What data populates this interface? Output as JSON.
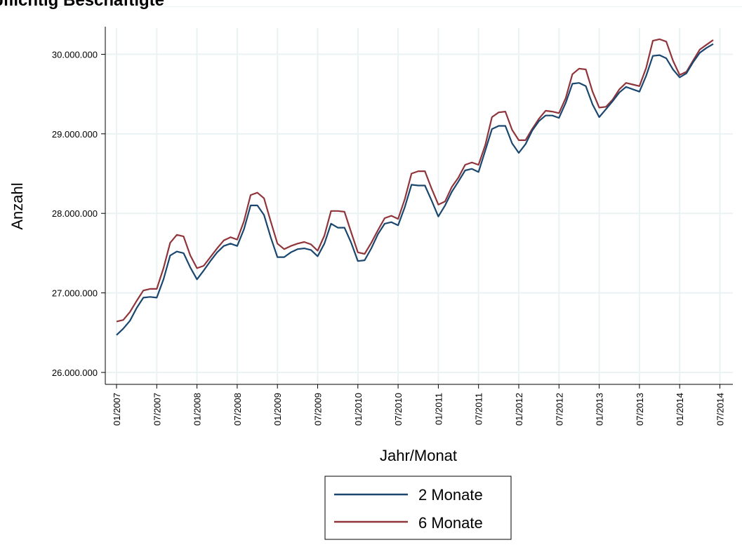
{
  "title": "...pflichtig Beschäftigte",
  "chart_data": {
    "type": "line",
    "xlabel": "Jahr/Monat",
    "ylabel": "Anzahl",
    "x_tick_labels": [
      "01/2007",
      "07/2007",
      "01/2008",
      "07/2008",
      "01/2009",
      "07/2009",
      "01/2010",
      "07/2010",
      "01/2011",
      "07/2011",
      "01/2012",
      "07/2012",
      "01/2013",
      "07/2013",
      "01/2014",
      "07/2014"
    ],
    "y_tick_labels": [
      "26.000.000",
      "27.000.000",
      "28.000.000",
      "29.000.000",
      "30.000.000"
    ],
    "y_ticks": [
      26000000,
      27000000,
      28000000,
      29000000,
      30000000
    ],
    "ylim": [
      25850000,
      30330000
    ],
    "x_range_months": [
      "01/2007",
      "07/2014"
    ],
    "x_start": "01/2007",
    "grid": true,
    "legend_position": "bottom-center",
    "series": [
      {
        "name": "2 Monate",
        "color": "#1a476f",
        "values": [
          26470000,
          26550000,
          26650000,
          26810000,
          26940000,
          26950000,
          26940000,
          27170000,
          27470000,
          27520000,
          27500000,
          27320000,
          27170000,
          27280000,
          27400000,
          27510000,
          27590000,
          27620000,
          27590000,
          27800000,
          28100000,
          28100000,
          27980000,
          27700000,
          27450000,
          27450000,
          27510000,
          27550000,
          27560000,
          27540000,
          27460000,
          27620000,
          27870000,
          27820000,
          27820000,
          27630000,
          27400000,
          27410000,
          27560000,
          27740000,
          27870000,
          27890000,
          27850000,
          28080000,
          28360000,
          28350000,
          28350000,
          28160000,
          27960000,
          28100000,
          28270000,
          28400000,
          28540000,
          28560000,
          28520000,
          28790000,
          29060000,
          29100000,
          29100000,
          28880000,
          28760000,
          28870000,
          29040000,
          29160000,
          29230000,
          29230000,
          29200000,
          29390000,
          29630000,
          29640000,
          29600000,
          29370000,
          29210000,
          29310000,
          29410000,
          29520000,
          29590000,
          29560000,
          29530000,
          29730000,
          29980000,
          29990000,
          29950000,
          29810000,
          29710000,
          29760000,
          29900000,
          30020000,
          30080000,
          30130000
        ]
      },
      {
        "name": "6 Monate",
        "color": "#90353b",
        "values": [
          26640000,
          26660000,
          26760000,
          26900000,
          27030000,
          27050000,
          27050000,
          27310000,
          27630000,
          27730000,
          27710000,
          27470000,
          27310000,
          27340000,
          27450000,
          27560000,
          27660000,
          27700000,
          27670000,
          27900000,
          28230000,
          28260000,
          28190000,
          27900000,
          27620000,
          27550000,
          27590000,
          27620000,
          27640000,
          27610000,
          27530000,
          27720000,
          28030000,
          28030000,
          28020000,
          27760000,
          27510000,
          27490000,
          27630000,
          27790000,
          27940000,
          27970000,
          27930000,
          28180000,
          28500000,
          28530000,
          28530000,
          28310000,
          28110000,
          28150000,
          28330000,
          28450000,
          28610000,
          28640000,
          28610000,
          28860000,
          29210000,
          29270000,
          29280000,
          29050000,
          28920000,
          28920000,
          29060000,
          29190000,
          29290000,
          29280000,
          29260000,
          29450000,
          29750000,
          29820000,
          29810000,
          29530000,
          29330000,
          29340000,
          29430000,
          29560000,
          29640000,
          29620000,
          29600000,
          29830000,
          30170000,
          30190000,
          30160000,
          29920000,
          29740000,
          29780000,
          29920000,
          30060000,
          30120000,
          30180000
        ]
      }
    ]
  }
}
